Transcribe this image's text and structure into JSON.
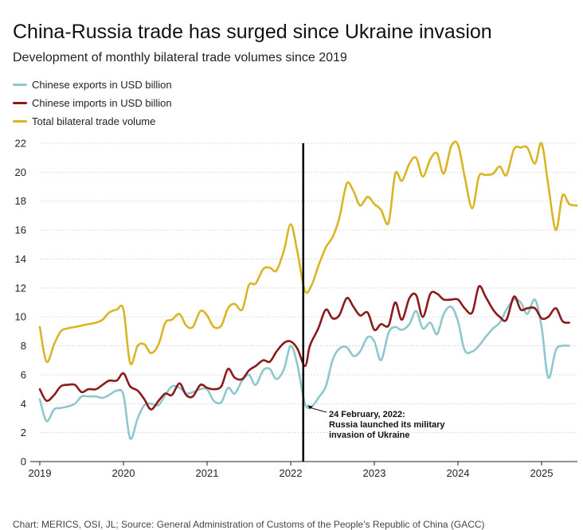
{
  "chart_data": {
    "type": "line",
    "title": "China-Russia trade has surged since Ukraine invasion",
    "subtitle": "Development of monthly bilateral trade volumes since 2019",
    "xlabel": "",
    "ylabel": "",
    "ylim": [
      0,
      22
    ],
    "yticks": [
      0,
      2,
      4,
      6,
      8,
      10,
      12,
      14,
      16,
      18,
      20,
      22
    ],
    "xlim": [
      2019,
      2025.42
    ],
    "xticks": [
      2019,
      2020,
      2021,
      2022,
      2023,
      2024,
      2025
    ],
    "xtick_labels": [
      "2019",
      "2020",
      "2021",
      "2022",
      "2023",
      "2024",
      "2025"
    ],
    "grid": "horizontal",
    "legend_position": "top-left",
    "series": [
      {
        "name": "Chinese exports in USD billion",
        "color": "#8ec7cd",
        "points": [
          [
            2019.0,
            4.3
          ],
          [
            2019.08,
            2.8
          ],
          [
            2019.17,
            3.6
          ],
          [
            2019.25,
            3.7
          ],
          [
            2019.33,
            3.8
          ],
          [
            2019.42,
            4.0
          ],
          [
            2019.5,
            4.5
          ],
          [
            2019.58,
            4.5
          ],
          [
            2019.67,
            4.5
          ],
          [
            2019.75,
            4.4
          ],
          [
            2019.83,
            4.6
          ],
          [
            2019.92,
            4.9
          ],
          [
            2020.0,
            4.6
          ],
          [
            2020.08,
            1.6
          ],
          [
            2020.17,
            3.0
          ],
          [
            2020.25,
            3.9
          ],
          [
            2020.33,
            4.0
          ],
          [
            2020.42,
            3.9
          ],
          [
            2020.5,
            4.6
          ],
          [
            2020.58,
            5.2
          ],
          [
            2020.67,
            5.1
          ],
          [
            2020.75,
            4.7
          ],
          [
            2020.83,
            4.8
          ],
          [
            2020.92,
            5.0
          ],
          [
            2021.0,
            5.0
          ],
          [
            2021.08,
            4.2
          ],
          [
            2021.17,
            4.1
          ],
          [
            2021.25,
            5.1
          ],
          [
            2021.33,
            4.7
          ],
          [
            2021.42,
            5.6
          ],
          [
            2021.5,
            6.0
          ],
          [
            2021.58,
            5.3
          ],
          [
            2021.67,
            6.3
          ],
          [
            2021.75,
            6.4
          ],
          [
            2021.83,
            5.7
          ],
          [
            2021.92,
            6.4
          ],
          [
            2022.0,
            8.0
          ],
          [
            2022.08,
            6.7
          ],
          [
            2022.17,
            4.0
          ],
          [
            2022.25,
            3.8
          ],
          [
            2022.33,
            4.4
          ],
          [
            2022.42,
            5.2
          ],
          [
            2022.5,
            7.0
          ],
          [
            2022.58,
            7.8
          ],
          [
            2022.67,
            7.9
          ],
          [
            2022.75,
            7.3
          ],
          [
            2022.83,
            7.6
          ],
          [
            2022.92,
            8.6
          ],
          [
            2023.0,
            8.3
          ],
          [
            2023.08,
            7.0
          ],
          [
            2023.17,
            8.9
          ],
          [
            2023.25,
            9.3
          ],
          [
            2023.33,
            9.1
          ],
          [
            2023.42,
            9.5
          ],
          [
            2023.5,
            10.4
          ],
          [
            2023.58,
            9.2
          ],
          [
            2023.67,
            9.6
          ],
          [
            2023.75,
            8.8
          ],
          [
            2023.83,
            10.2
          ],
          [
            2023.92,
            10.7
          ],
          [
            2024.0,
            9.7
          ],
          [
            2024.08,
            7.7
          ],
          [
            2024.17,
            7.6
          ],
          [
            2024.25,
            8.0
          ],
          [
            2024.33,
            8.6
          ],
          [
            2024.42,
            9.2
          ],
          [
            2024.5,
            9.6
          ],
          [
            2024.58,
            10.5
          ],
          [
            2024.67,
            11.2
          ],
          [
            2024.75,
            11.0
          ],
          [
            2024.83,
            10.2
          ],
          [
            2024.92,
            11.2
          ],
          [
            2025.0,
            9.3
          ],
          [
            2025.08,
            5.8
          ],
          [
            2025.17,
            7.7
          ],
          [
            2025.25,
            8.0
          ],
          [
            2025.33,
            8.0
          ]
        ]
      },
      {
        "name": "Chinese imports in USD billion",
        "color": "#8b1a1a",
        "points": [
          [
            2019.0,
            5.0
          ],
          [
            2019.08,
            4.2
          ],
          [
            2019.17,
            4.6
          ],
          [
            2019.25,
            5.2
          ],
          [
            2019.33,
            5.3
          ],
          [
            2019.42,
            5.3
          ],
          [
            2019.5,
            4.8
          ],
          [
            2019.58,
            5.0
          ],
          [
            2019.67,
            5.0
          ],
          [
            2019.75,
            5.3
          ],
          [
            2019.83,
            5.6
          ],
          [
            2019.92,
            5.6
          ],
          [
            2020.0,
            6.1
          ],
          [
            2020.08,
            5.2
          ],
          [
            2020.17,
            4.9
          ],
          [
            2020.25,
            4.3
          ],
          [
            2020.33,
            3.6
          ],
          [
            2020.42,
            4.2
          ],
          [
            2020.5,
            4.7
          ],
          [
            2020.58,
            4.6
          ],
          [
            2020.67,
            5.4
          ],
          [
            2020.75,
            4.6
          ],
          [
            2020.83,
            4.5
          ],
          [
            2020.92,
            5.3
          ],
          [
            2021.0,
            5.1
          ],
          [
            2021.08,
            5.0
          ],
          [
            2021.17,
            5.2
          ],
          [
            2021.25,
            6.4
          ],
          [
            2021.33,
            5.8
          ],
          [
            2021.42,
            5.7
          ],
          [
            2021.5,
            6.3
          ],
          [
            2021.58,
            6.6
          ],
          [
            2021.67,
            7.0
          ],
          [
            2021.75,
            6.9
          ],
          [
            2021.83,
            7.6
          ],
          [
            2021.92,
            8.2
          ],
          [
            2022.0,
            8.3
          ],
          [
            2022.08,
            7.8
          ],
          [
            2022.17,
            6.6
          ],
          [
            2022.22,
            7.8
          ],
          [
            2022.25,
            8.3
          ],
          [
            2022.33,
            9.2
          ],
          [
            2022.42,
            10.5
          ],
          [
            2022.5,
            9.9
          ],
          [
            2022.58,
            10.1
          ],
          [
            2022.67,
            11.3
          ],
          [
            2022.75,
            10.7
          ],
          [
            2022.83,
            10.1
          ],
          [
            2022.92,
            10.3
          ],
          [
            2023.0,
            9.1
          ],
          [
            2023.08,
            9.5
          ],
          [
            2023.17,
            9.4
          ],
          [
            2023.25,
            11.0
          ],
          [
            2023.33,
            9.8
          ],
          [
            2023.42,
            11.3
          ],
          [
            2023.5,
            11.5
          ],
          [
            2023.58,
            10.0
          ],
          [
            2023.67,
            11.6
          ],
          [
            2023.75,
            11.6
          ],
          [
            2023.83,
            11.2
          ],
          [
            2023.92,
            11.2
          ],
          [
            2024.0,
            11.2
          ],
          [
            2024.08,
            10.6
          ],
          [
            2024.17,
            10.3
          ],
          [
            2024.25,
            12.1
          ],
          [
            2024.33,
            11.4
          ],
          [
            2024.42,
            10.5
          ],
          [
            2024.5,
            10.0
          ],
          [
            2024.58,
            9.8
          ],
          [
            2024.67,
            11.4
          ],
          [
            2024.75,
            10.5
          ],
          [
            2024.83,
            10.6
          ],
          [
            2024.92,
            10.6
          ],
          [
            2025.0,
            9.9
          ],
          [
            2025.08,
            10.0
          ],
          [
            2025.17,
            10.6
          ],
          [
            2025.25,
            9.7
          ],
          [
            2025.33,
            9.6
          ]
        ]
      },
      {
        "name": "Total bilateral trade volume",
        "color": "#d9b526",
        "points": [
          [
            2019.0,
            9.3
          ],
          [
            2019.08,
            6.9
          ],
          [
            2019.17,
            8.1
          ],
          [
            2019.25,
            9.0
          ],
          [
            2019.33,
            9.2
          ],
          [
            2019.42,
            9.3
          ],
          [
            2019.5,
            9.4
          ],
          [
            2019.58,
            9.5
          ],
          [
            2019.67,
            9.6
          ],
          [
            2019.75,
            9.8
          ],
          [
            2019.83,
            10.3
          ],
          [
            2019.92,
            10.5
          ],
          [
            2020.0,
            10.5
          ],
          [
            2020.08,
            6.8
          ],
          [
            2020.17,
            8.0
          ],
          [
            2020.25,
            8.1
          ],
          [
            2020.33,
            7.5
          ],
          [
            2020.42,
            8.1
          ],
          [
            2020.5,
            9.6
          ],
          [
            2020.58,
            9.8
          ],
          [
            2020.67,
            10.2
          ],
          [
            2020.75,
            9.4
          ],
          [
            2020.83,
            9.3
          ],
          [
            2020.92,
            10.4
          ],
          [
            2021.0,
            10.1
          ],
          [
            2021.08,
            9.3
          ],
          [
            2021.17,
            9.4
          ],
          [
            2021.25,
            10.6
          ],
          [
            2021.33,
            10.9
          ],
          [
            2021.42,
            10.5
          ],
          [
            2021.5,
            12.2
          ],
          [
            2021.58,
            12.3
          ],
          [
            2021.67,
            13.3
          ],
          [
            2021.75,
            13.4
          ],
          [
            2021.83,
            13.2
          ],
          [
            2021.92,
            14.6
          ],
          [
            2022.0,
            16.4
          ],
          [
            2022.08,
            14.5
          ],
          [
            2022.17,
            11.8
          ],
          [
            2022.25,
            12.2
          ],
          [
            2022.33,
            13.5
          ],
          [
            2022.42,
            14.8
          ],
          [
            2022.5,
            15.5
          ],
          [
            2022.58,
            16.8
          ],
          [
            2022.67,
            19.2
          ],
          [
            2022.75,
            18.7
          ],
          [
            2022.83,
            17.7
          ],
          [
            2022.92,
            18.3
          ],
          [
            2023.0,
            17.8
          ],
          [
            2023.08,
            17.4
          ],
          [
            2023.17,
            16.5
          ],
          [
            2023.25,
            19.9
          ],
          [
            2023.33,
            19.4
          ],
          [
            2023.42,
            20.6
          ],
          [
            2023.5,
            21.0
          ],
          [
            2023.58,
            19.7
          ],
          [
            2023.67,
            20.9
          ],
          [
            2023.75,
            21.3
          ],
          [
            2023.83,
            19.9
          ],
          [
            2023.92,
            21.8
          ],
          [
            2024.0,
            21.9
          ],
          [
            2024.08,
            19.7
          ],
          [
            2024.17,
            17.5
          ],
          [
            2024.25,
            19.7
          ],
          [
            2024.33,
            19.8
          ],
          [
            2024.42,
            19.9
          ],
          [
            2024.5,
            20.4
          ],
          [
            2024.58,
            19.8
          ],
          [
            2024.67,
            21.6
          ],
          [
            2024.75,
            21.7
          ],
          [
            2024.83,
            21.7
          ],
          [
            2024.92,
            20.6
          ],
          [
            2025.0,
            22.0
          ],
          [
            2025.08,
            19.1
          ],
          [
            2025.17,
            16.0
          ],
          [
            2025.25,
            18.4
          ],
          [
            2025.33,
            17.8
          ],
          [
            2025.42,
            17.7
          ]
        ]
      }
    ],
    "marker": {
      "x": 2022.15,
      "annotation": [
        "24 February, 2022:",
        "Russia launched its military",
        "invasion of Ukraine"
      ]
    }
  },
  "footer": "Chart: MERICS, OSI, JL; Source: General Administration of Customs of the People's Republic of China (GACC)"
}
